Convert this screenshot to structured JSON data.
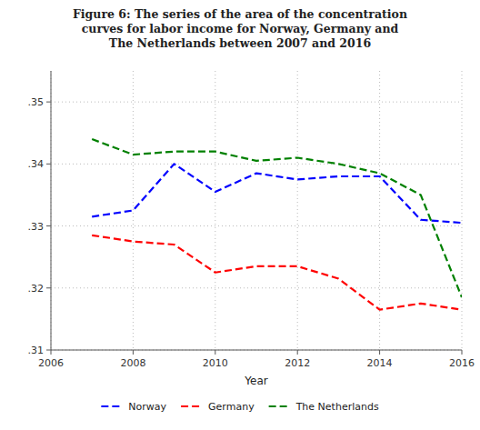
{
  "chart_data": {
    "type": "line",
    "title": "Figure 6: The series of the area of the concentration\ncurves for labor income for Norway, Germany and\nThe Netherlands between 2007 and 2016",
    "xlabel": "Year",
    "x": [
      2007,
      2008,
      2009,
      2010,
      2011,
      2012,
      2013,
      2014,
      2015,
      2016
    ],
    "series": [
      {
        "name": "Norway",
        "color": "#0000FF",
        "line_style": "dashed",
        "values": [
          0.3315,
          0.3325,
          0.34,
          0.3355,
          0.3385,
          0.3375,
          0.338,
          0.338,
          0.331,
          0.3305
        ]
      },
      {
        "name": "Germany",
        "color": "#FF0000",
        "line_style": "dashed",
        "values": [
          0.3285,
          0.3275,
          0.327,
          0.3225,
          0.3235,
          0.3235,
          0.3215,
          0.3165,
          0.3175,
          0.3165
        ]
      },
      {
        "name": "The Netherlands",
        "color": "#008000",
        "line_style": "dashed",
        "values": [
          0.344,
          0.3415,
          0.342,
          0.342,
          0.3405,
          0.341,
          0.34,
          0.3385,
          0.335,
          0.3185
        ]
      }
    ],
    "xlim": [
      2006,
      2016
    ],
    "ylim": [
      0.31,
      0.355
    ],
    "xticks": [
      2006,
      2008,
      2010,
      2012,
      2014,
      2016
    ],
    "yticks": [
      {
        "value": 0.31,
        "label": ".31"
      },
      {
        "value": 0.32,
        "label": ".32"
      },
      {
        "value": 0.33,
        "label": ".33"
      },
      {
        "value": 0.34,
        "label": ".34"
      },
      {
        "value": 0.35,
        "label": ".35"
      }
    ],
    "grid": true,
    "legend": "bottom"
  }
}
